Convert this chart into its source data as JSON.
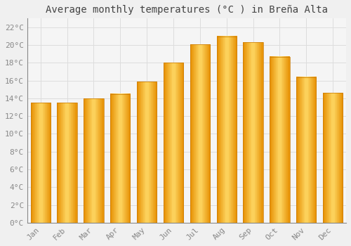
{
  "title": "Average monthly temperatures (°C ) in Breña Alta",
  "months": [
    "Jan",
    "Feb",
    "Mar",
    "Apr",
    "May",
    "Jun",
    "Jul",
    "Aug",
    "Sep",
    "Oct",
    "Nov",
    "Dec"
  ],
  "values": [
    13.5,
    13.5,
    14.0,
    14.5,
    15.9,
    18.0,
    20.1,
    21.0,
    20.3,
    18.7,
    16.4,
    14.6
  ],
  "bar_color_center": "#FFD966",
  "bar_color_edge": "#F5A800",
  "background_color": "#F0F0F0",
  "plot_bg_color": "#F5F5F5",
  "grid_color": "#DDDDDD",
  "yticks": [
    0,
    2,
    4,
    6,
    8,
    10,
    12,
    14,
    16,
    18,
    20,
    22
  ],
  "ylim": [
    0,
    23
  ],
  "title_fontsize": 10,
  "tick_fontsize": 8,
  "tick_label_color": "#888888",
  "title_color": "#444444",
  "bar_width": 0.75
}
